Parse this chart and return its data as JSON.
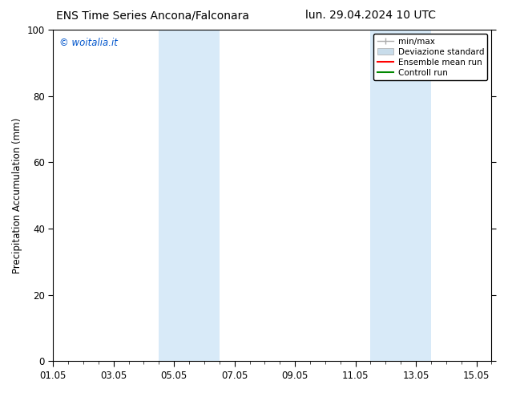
{
  "title_left": "ENS Time Series Ancona/Falconara",
  "title_right": "lun. 29.04.2024 10 UTC",
  "ylabel": "Precipitation Accumulation (mm)",
  "watermark": "© woitalia.it",
  "watermark_color": "#0055cc",
  "xlim_start": 0.0,
  "xlim_end": 14.5,
  "ylim_bottom": 0,
  "ylim_top": 100,
  "yticks": [
    0,
    20,
    40,
    60,
    80,
    100
  ],
  "xtick_positions": [
    0,
    2,
    4,
    6,
    8,
    10,
    12,
    14
  ],
  "xtick_labels": [
    "01.05",
    "03.05",
    "05.05",
    "07.05",
    "09.05",
    "11.05",
    "13.05",
    "15.05"
  ],
  "shaded_regions": [
    {
      "x_start": 3.5,
      "x_end": 5.5,
      "color": "#d8eaf8"
    },
    {
      "x_start": 10.5,
      "x_end": 12.5,
      "color": "#d8eaf8"
    }
  ],
  "legend_labels": [
    "min/max",
    "Deviazione standard",
    "Ensemble mean run",
    "Controll run"
  ],
  "legend_colors": [
    "#aaaaaa",
    "#c8dcea",
    "#ff0000",
    "#008800"
  ],
  "background_color": "#ffffff",
  "axes_background": "#ffffff",
  "title_fontsize": 10,
  "axis_label_fontsize": 8.5,
  "tick_fontsize": 8.5
}
